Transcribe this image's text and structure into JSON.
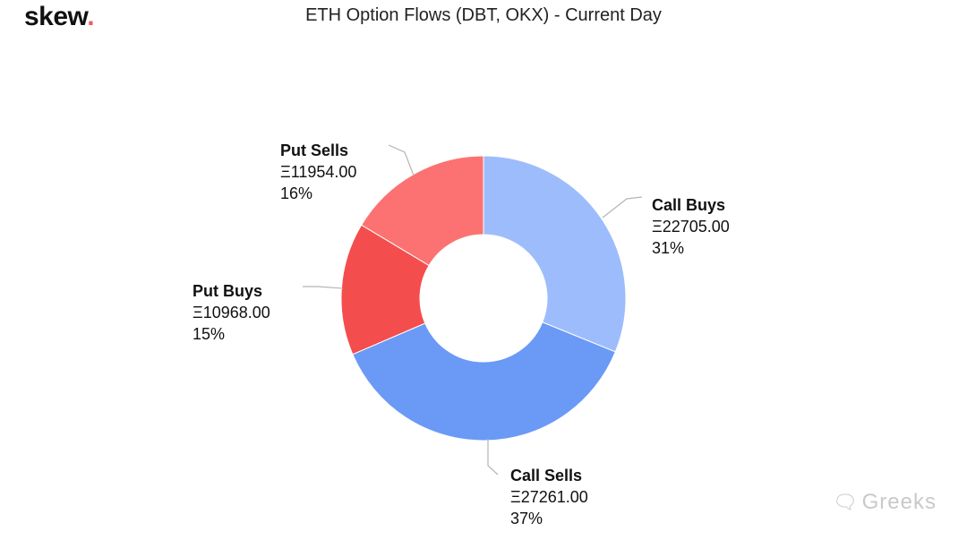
{
  "logo": {
    "text": "skew",
    "dot": "."
  },
  "watermark": {
    "text": "Greeks"
  },
  "chart_data": {
    "type": "pie",
    "variant": "donut",
    "title": "ETH Option Flows (DBT, OKX) - Current Day",
    "slices": [
      {
        "label": "Call Buys",
        "value_text": "Ξ22705.00",
        "value": 22705.0,
        "percent_text": "31%",
        "color": "#9dbcfb"
      },
      {
        "label": "Call Sells",
        "value_text": "Ξ27261.00",
        "value": 27261.0,
        "percent_text": "37%",
        "color": "#6a9af5"
      },
      {
        "label": "Put Buys",
        "value_text": "Ξ10968.00",
        "value": 10968.0,
        "percent_text": "15%",
        "color": "#f44d4d"
      },
      {
        "label": "Put Sells",
        "value_text": "Ξ11954.00",
        "value": 11954.0,
        "percent_text": "16%",
        "color": "#fc7272"
      }
    ],
    "legend": "none",
    "data_labels": "outside"
  }
}
